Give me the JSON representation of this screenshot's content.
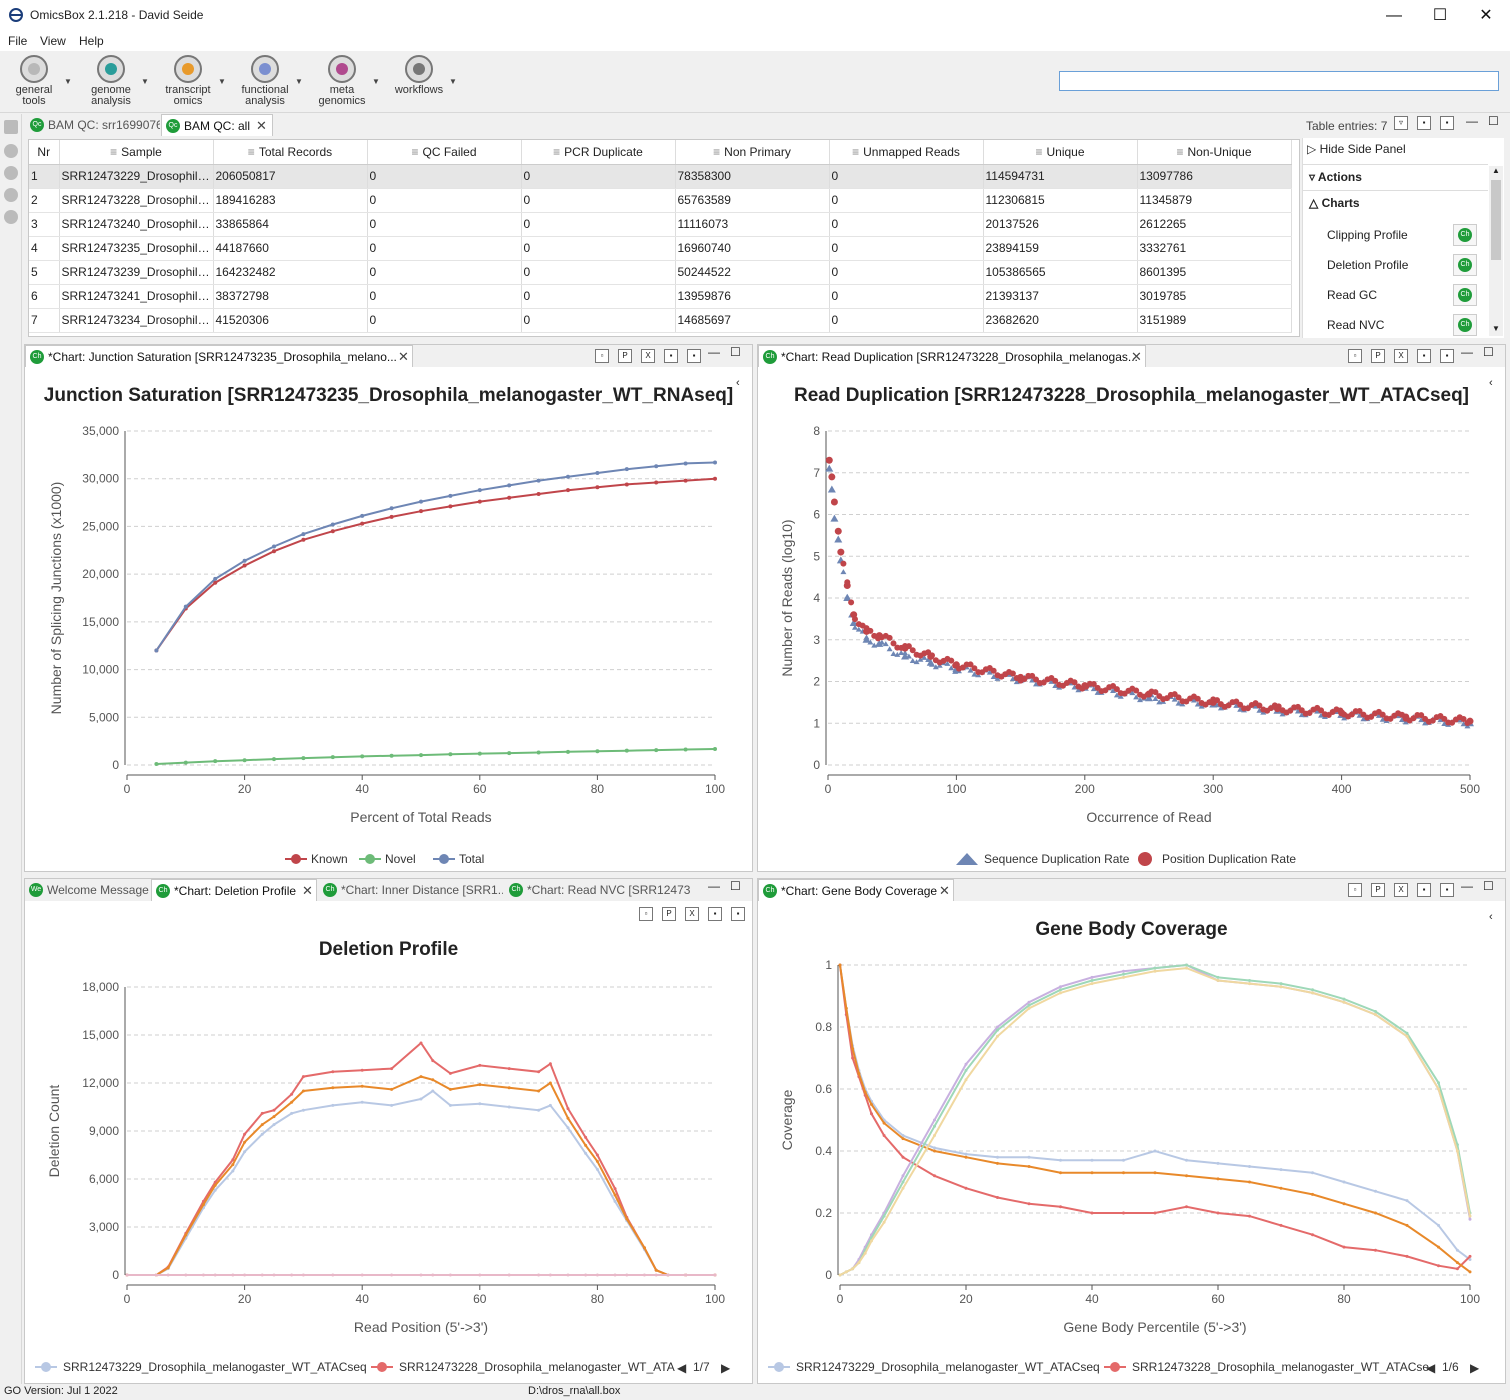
{
  "app": {
    "title": "OmicsBox 2.1.218 - David Seide"
  },
  "menu": [
    "File",
    "View",
    "Help"
  ],
  "toolbar": [
    {
      "l1": "general",
      "l2": "tools",
      "color": "#b8b8b8"
    },
    {
      "l1": "genome",
      "l2": "analysis",
      "color": "#2a9d9a"
    },
    {
      "l1": "transcript",
      "l2": "omics",
      "color": "#e89a2b"
    },
    {
      "l1": "functional",
      "l2": "analysis",
      "color": "#7b8fd0"
    },
    {
      "l1": "meta",
      "l2": "genomics",
      "color": "#b04a8e"
    },
    {
      "l1": "",
      "l2": "workflows",
      "color": "#777777"
    }
  ],
  "top_tabs": [
    {
      "label": "BAM QC: srr1699076"
    },
    {
      "label": "BAM QC: all"
    }
  ],
  "table_entries": "Table entries: 7",
  "table": {
    "headers": [
      "Nr",
      "Sample",
      "Total Records",
      "QC Failed",
      "PCR Duplicate",
      "Non Primary",
      "Unmapped Reads",
      "Unique",
      "Non-Unique"
    ],
    "rows": [
      [
        "1",
        "SRR12473229_Drosophila_...",
        "206050817",
        "0",
        "0",
        "78358300",
        "0",
        "114594731",
        "13097786"
      ],
      [
        "2",
        "SRR12473228_Drosophila_...",
        "189416283",
        "0",
        "0",
        "65763589",
        "0",
        "112306815",
        "11345879"
      ],
      [
        "3",
        "SRR12473240_Drosophila_...",
        "33865864",
        "0",
        "0",
        "11116073",
        "0",
        "20137526",
        "2612265"
      ],
      [
        "4",
        "SRR12473235_Drosophila_...",
        "44187660",
        "0",
        "0",
        "16960740",
        "0",
        "23894159",
        "3332761"
      ],
      [
        "5",
        "SRR12473239_Drosophila_...",
        "164232482",
        "0",
        "0",
        "50244522",
        "0",
        "105386565",
        "8601395"
      ],
      [
        "6",
        "SRR12473241_Drosophila_...",
        "38372798",
        "0",
        "0",
        "13959876",
        "0",
        "21393137",
        "3019785"
      ],
      [
        "7",
        "SRR12473234_Drosophila_...",
        "41520306",
        "0",
        "0",
        "14685697",
        "0",
        "23682620",
        "3151989"
      ]
    ]
  },
  "side_panel": {
    "hide": "Hide Side Panel",
    "actions": "Actions",
    "charts": "Charts",
    "items": [
      "Clipping Profile",
      "Deletion Profile",
      "Read GC",
      "Read NVC"
    ],
    "btn": "Ch"
  },
  "panels": {
    "junction": {
      "tab": "*Chart: Junction Saturation [SRR12473235_Drosophila_melano...",
      "title": "Junction Saturation [SRR12473235_Drosophila_melanogaster_WT_RNAseq]",
      "xlabel": "Percent of Total Reads",
      "ylabel": "Number of Splicing Junctions (x1000)"
    },
    "dup": {
      "tab": "*Chart: Read Duplication [SRR12473228_Drosophila_melanogas...",
      "title": "Read Duplication [SRR12473228_Drosophila_melanogaster_WT_ATACseq]",
      "xlabel": "Occurrence of Read",
      "ylabel": "Number of Reads (log10)"
    },
    "del": {
      "tabs": [
        "Welcome Message",
        "*Chart: Deletion Profile",
        "*Chart: Inner Distance [SRR1...",
        "*Chart: Read NVC [SRR12473..."
      ],
      "title": "Deletion Profile",
      "xlabel": "Read Position (5'->3')",
      "ylabel": "Deletion Count",
      "legend": [
        "SRR12473229_Drosophila_melanogaster_WT_ATACseq",
        "SRR12473228_Drosophila_melanogaster_WT_ATA"
      ],
      "page": "1/7"
    },
    "gbc": {
      "tab": "*Chart: Gene Body Coverage",
      "title": "Gene Body Coverage",
      "xlabel": "Gene Body Percentile (5'->3')",
      "ylabel": "Coverage",
      "legend": [
        "SRR12473229_Drosophila_melanogaster_WT_ATACseq",
        "SRR12473228_Drosophila_melanogaster_WT_ATACse"
      ],
      "page": "1/6"
    }
  },
  "status": {
    "left": "GO Version: Jul 1 2022",
    "center": "D:\\dros_rna\\all.box"
  },
  "chart_data": [
    {
      "type": "line",
      "title": "Junction Saturation [SRR12473235_Drosophila_melanogaster_WT_RNAseq]",
      "xlabel": "Percent of Total Reads",
      "ylabel": "Number of Splicing Junctions (x1000)",
      "xlim": [
        0,
        100
      ],
      "ylim": [
        0,
        35000
      ],
      "xticks": [
        0,
        20,
        40,
        60,
        80,
        100
      ],
      "yticks": [
        0,
        5000,
        10000,
        15000,
        20000,
        25000,
        30000,
        35000
      ],
      "x": [
        5,
        10,
        15,
        20,
        25,
        30,
        35,
        40,
        45,
        50,
        55,
        60,
        65,
        70,
        75,
        80,
        85,
        90,
        95,
        100
      ],
      "series": [
        {
          "name": "Known",
          "color": "#c0454a",
          "values": [
            12000,
            16400,
            19100,
            20900,
            22400,
            23600,
            24500,
            25300,
            26000,
            26600,
            27100,
            27600,
            28000,
            28400,
            28800,
            29100,
            29400,
            29600,
            29800,
            30000
          ]
        },
        {
          "name": "Novel",
          "color": "#6dbb78",
          "values": [
            100,
            250,
            400,
            500,
            620,
            720,
            820,
            900,
            970,
            1040,
            1120,
            1190,
            1250,
            1310,
            1380,
            1440,
            1500,
            1560,
            1620,
            1680
          ]
        },
        {
          "name": "Total",
          "color": "#6e86b4",
          "values": [
            12000,
            16600,
            19500,
            21400,
            22900,
            24200,
            25200,
            26100,
            26900,
            27600,
            28200,
            28800,
            29300,
            29800,
            30200,
            30600,
            31000,
            31300,
            31600,
            31700
          ]
        }
      ],
      "legend": "bottom"
    },
    {
      "type": "scatter",
      "title": "Read Duplication [SRR12473228_Drosophila_melanogaster_WT_ATACseq]",
      "xlabel": "Occurrence of Read",
      "ylabel": "Number of Reads (log10)",
      "xlim": [
        0,
        500
      ],
      "ylim": [
        0,
        8
      ],
      "xticks": [
        0,
        100,
        200,
        300,
        400,
        500
      ],
      "yticks": [
        0,
        1,
        2,
        3,
        4,
        5,
        6,
        7,
        8
      ],
      "series": [
        {
          "name": "Sequence Duplication Rate",
          "color": "#6e86b4",
          "marker": "triangle",
          "x": [
            1,
            3,
            5,
            8,
            10,
            15,
            20,
            30,
            40,
            60,
            80,
            100,
            150,
            200,
            250,
            300,
            350,
            400,
            450,
            500
          ],
          "values": [
            7.1,
            6.6,
            5.9,
            5.4,
            4.9,
            4.0,
            3.4,
            3.0,
            2.9,
            2.6,
            2.45,
            2.3,
            2.05,
            1.85,
            1.6,
            1.45,
            1.3,
            1.2,
            1.1,
            1.0
          ]
        },
        {
          "name": "Position Duplication Rate",
          "color": "#c0454a",
          "marker": "circle",
          "x": [
            1,
            3,
            5,
            8,
            10,
            15,
            20,
            30,
            40,
            60,
            80,
            100,
            150,
            200,
            250,
            300,
            350,
            400,
            450,
            500
          ],
          "values": [
            7.3,
            6.9,
            6.3,
            5.6,
            5.1,
            4.3,
            3.6,
            3.2,
            3.1,
            2.8,
            2.6,
            2.4,
            2.1,
            1.9,
            1.7,
            1.5,
            1.35,
            1.25,
            1.15,
            1.05
          ]
        }
      ],
      "legend": "bottom"
    },
    {
      "type": "line",
      "title": "Deletion Profile",
      "xlabel": "Read Position (5'->3')",
      "ylabel": "Deletion Count",
      "xlim": [
        0,
        100
      ],
      "ylim": [
        0,
        18000
      ],
      "xticks": [
        0,
        20,
        40,
        60,
        80,
        100
      ],
      "yticks": [
        0,
        3000,
        6000,
        9000,
        12000,
        15000,
        18000
      ],
      "x": [
        0,
        5,
        7,
        10,
        13,
        15,
        18,
        20,
        23,
        25,
        28,
        30,
        35,
        40,
        45,
        50,
        52,
        55,
        60,
        65,
        70,
        72,
        75,
        78,
        80,
        83,
        85,
        88,
        90,
        92,
        95,
        100
      ],
      "series": [
        {
          "name": "SRR12473229_Drosophila_melanogaster_WT_ATACseq",
          "color": "#b8c8e4",
          "values": [
            0,
            0,
            400,
            2300,
            4200,
            5300,
            6500,
            7700,
            8800,
            9400,
            10100,
            10300,
            10600,
            10800,
            10600,
            11000,
            11500,
            10600,
            10700,
            10500,
            10300,
            10600,
            9200,
            7600,
            6600,
            4600,
            3400,
            1600,
            300,
            0,
            0,
            0
          ]
        },
        {
          "name": "SRR12473228_Drosophila_melanogaster_WT_ATA",
          "color": "#e46a6a",
          "values": [
            0,
            0,
            500,
            2600,
            4600,
            5800,
            7200,
            8800,
            10100,
            10300,
            11300,
            12400,
            12700,
            12800,
            12900,
            14500,
            13400,
            12600,
            13100,
            12900,
            12700,
            13200,
            10400,
            8600,
            7500,
            5400,
            3600,
            1700,
            300,
            0,
            0,
            0
          ]
        },
        {
          "name": "",
          "color": "#e8892a",
          "values": [
            0,
            0,
            450,
            2500,
            4400,
            5600,
            6900,
            8300,
            9400,
            9900,
            10800,
            11500,
            11700,
            11800,
            11600,
            12400,
            12200,
            11600,
            11900,
            11700,
            11500,
            12000,
            9800,
            8100,
            7100,
            5000,
            3500,
            1700,
            300,
            0,
            0,
            0
          ]
        },
        {
          "name": "",
          "color": "#e8b8c8",
          "values": [
            0,
            0,
            0,
            0,
            0,
            0,
            0,
            0,
            0,
            0,
            0,
            0,
            0,
            0,
            0,
            0,
            0,
            0,
            0,
            0,
            0,
            0,
            0,
            0,
            0,
            0,
            0,
            0,
            0,
            0,
            0,
            0
          ]
        }
      ],
      "legend": "bottom"
    },
    {
      "type": "line",
      "title": "Gene Body Coverage",
      "xlabel": "Gene Body Percentile (5'->3')",
      "ylabel": "Coverage",
      "xlim": [
        0,
        100
      ],
      "ylim": [
        0,
        1
      ],
      "xticks": [
        0,
        20,
        40,
        60,
        80,
        100
      ],
      "yticks": [
        0,
        0.2,
        0.4,
        0.6,
        0.8,
        1
      ],
      "x": [
        0,
        1,
        2,
        3,
        4,
        5,
        7,
        10,
        15,
        20,
        25,
        30,
        35,
        40,
        45,
        50,
        55,
        60,
        65,
        70,
        75,
        80,
        85,
        90,
        95,
        98,
        100
      ],
      "series": [
        {
          "name": "SRR12473229_Drosophila_melanogaster_WT_ATACseq",
          "color": "#b8c8e4",
          "values": [
            1,
            0.86,
            0.74,
            0.66,
            0.6,
            0.56,
            0.5,
            0.45,
            0.41,
            0.39,
            0.38,
            0.38,
            0.37,
            0.37,
            0.37,
            0.4,
            0.37,
            0.36,
            0.35,
            0.34,
            0.33,
            0.3,
            0.27,
            0.24,
            0.16,
            0.08,
            0.05
          ]
        },
        {
          "name": "SRR12473228_Drosophila_melanogaster_WT_ATACse",
          "color": "#e46a6a",
          "values": [
            1,
            0.84,
            0.7,
            0.64,
            0.58,
            0.52,
            0.45,
            0.38,
            0.32,
            0.28,
            0.25,
            0.23,
            0.22,
            0.2,
            0.2,
            0.2,
            0.22,
            0.2,
            0.19,
            0.16,
            0.13,
            0.09,
            0.08,
            0.06,
            0.03,
            0.02,
            0.06
          ]
        },
        {
          "name": "",
          "color": "#e8892a",
          "values": [
            1,
            0.86,
            0.73,
            0.65,
            0.59,
            0.55,
            0.49,
            0.44,
            0.4,
            0.38,
            0.36,
            0.35,
            0.33,
            0.33,
            0.33,
            0.33,
            0.32,
            0.31,
            0.3,
            0.28,
            0.26,
            0.23,
            0.2,
            0.16,
            0.09,
            0.04,
            0.01
          ]
        },
        {
          "name": "",
          "color": "#c8b0e0",
          "values": [
            0,
            0.01,
            0.02,
            0.05,
            0.09,
            0.13,
            0.2,
            0.32,
            0.5,
            0.68,
            0.8,
            0.88,
            0.93,
            0.96,
            0.98,
            0.99,
            1,
            0.95,
            0.94,
            0.93,
            0.91,
            0.88,
            0.84,
            0.77,
            0.6,
            0.4,
            0.18
          ]
        },
        {
          "name": "",
          "color": "#9ed8b8",
          "values": [
            0,
            0.01,
            0.02,
            0.04,
            0.08,
            0.12,
            0.19,
            0.3,
            0.48,
            0.66,
            0.79,
            0.87,
            0.92,
            0.95,
            0.97,
            0.99,
            1,
            0.96,
            0.95,
            0.94,
            0.92,
            0.89,
            0.85,
            0.78,
            0.62,
            0.42,
            0.2
          ]
        },
        {
          "name": "",
          "color": "#f0d8a0",
          "values": [
            0,
            0.01,
            0.02,
            0.04,
            0.07,
            0.11,
            0.17,
            0.28,
            0.45,
            0.63,
            0.77,
            0.86,
            0.91,
            0.94,
            0.96,
            0.98,
            0.99,
            0.95,
            0.94,
            0.93,
            0.91,
            0.88,
            0.84,
            0.77,
            0.6,
            0.4,
            0.19
          ]
        }
      ],
      "legend": "bottom"
    }
  ]
}
